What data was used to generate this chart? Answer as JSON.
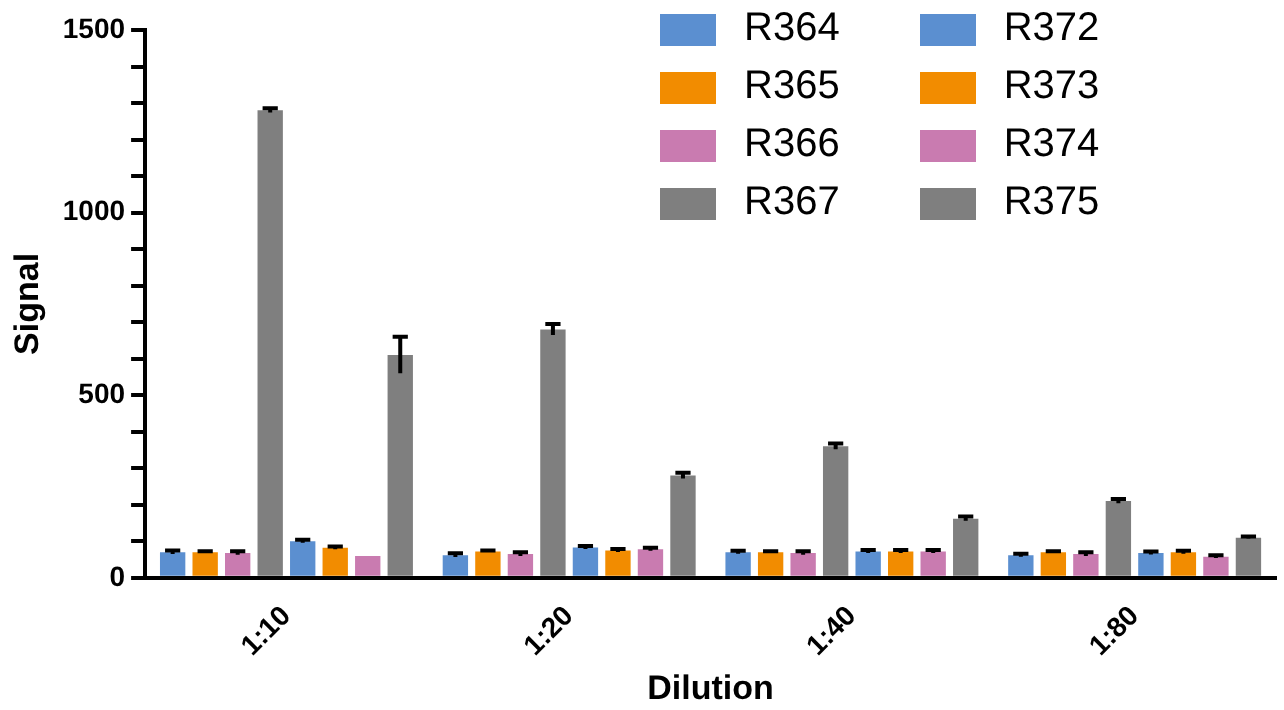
{
  "chart_data": {
    "type": "bar",
    "xlabel": "Dilution",
    "ylabel": "Signal",
    "categories": [
      "1:10",
      "1:20",
      "1:40",
      "1:80"
    ],
    "series": [
      {
        "name": "R364",
        "color": "#5b8fd0",
        "values": [
          70,
          62,
          70,
          62
        ],
        "errors": [
          5,
          5,
          4,
          4
        ]
      },
      {
        "name": "R365",
        "color": "#f28c00",
        "values": [
          70,
          72,
          70,
          70
        ],
        "errors": [
          3,
          3,
          3,
          3
        ]
      },
      {
        "name": "R366",
        "color": "#c97bb0",
        "values": [
          68,
          65,
          68,
          65
        ],
        "errors": [
          5,
          5,
          5,
          5
        ]
      },
      {
        "name": "R367",
        "color": "#7f7f7f",
        "values": [
          1280,
          680,
          360,
          210
        ],
        "errors": [
          6,
          15,
          8,
          6
        ]
      },
      {
        "name": "R372",
        "color": "#5b8fd0",
        "values": [
          100,
          83,
          72,
          68
        ],
        "errors": [
          4,
          4,
          4,
          4
        ]
      },
      {
        "name": "R373",
        "color": "#f28c00",
        "values": [
          82,
          75,
          72,
          70
        ],
        "errors": [
          4,
          4,
          4,
          4
        ]
      },
      {
        "name": "R374",
        "color": "#c97bb0",
        "values": [
          60,
          78,
          72,
          58
        ],
        "errors": [
          null,
          4,
          4,
          4
        ]
      },
      {
        "name": "R375",
        "color": "#7f7f7f",
        "values": [
          610,
          280,
          162,
          110
        ],
        "errors": [
          50,
          8,
          6,
          3
        ]
      }
    ],
    "ylim": [
      0,
      1500
    ],
    "yticks": [
      0,
      {
        "value": 100,
        "label": null
      },
      {
        "value": 200,
        "label": null
      },
      {
        "value": 300,
        "label": null
      },
      {
        "value": 400,
        "label": null
      },
      500,
      {
        "value": 600,
        "label": null
      },
      {
        "value": 700,
        "label": null
      },
      {
        "value": 800,
        "label": null
      },
      {
        "value": 900,
        "label": null
      },
      1000,
      {
        "value": 1100,
        "label": null
      },
      {
        "value": 1200,
        "label": null
      },
      {
        "value": 1300,
        "label": null
      },
      {
        "value": 1400,
        "label": null
      },
      1500
    ],
    "grid": false,
    "legend": "top right"
  }
}
